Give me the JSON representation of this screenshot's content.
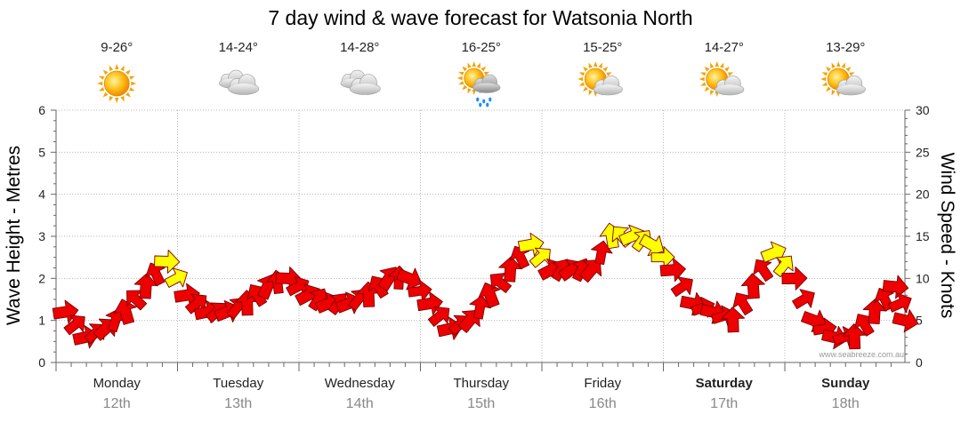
{
  "chart_data": {
    "type": "line",
    "title": "7 day wind & wave forecast for Watsonia North",
    "ylabel": "Wave Height - Metres",
    "y2label": "Wind Speed - Knots",
    "ylim": [
      0,
      6
    ],
    "y2lim": [
      0,
      30
    ],
    "y_ticks": [
      "0",
      "1",
      "2",
      "3",
      "4",
      "5",
      "6"
    ],
    "y2_ticks": [
      "0",
      "5",
      "10",
      "15",
      "20",
      "25",
      "30"
    ],
    "grid": true,
    "credit": "www.seabreeze.com.au",
    "days": [
      {
        "name": "Monday",
        "date": "12th",
        "temp": "9-26°",
        "icon": "sunny-icon",
        "bold": false
      },
      {
        "name": "Tuesday",
        "date": "13th",
        "temp": "14-24°",
        "icon": "cloudy-icon",
        "bold": false
      },
      {
        "name": "Wednesday",
        "date": "14th",
        "temp": "14-28°",
        "icon": "cloudy-icon",
        "bold": false
      },
      {
        "name": "Thursday",
        "date": "15th",
        "temp": "16-25°",
        "icon": "shower-icon",
        "bold": false
      },
      {
        "name": "Friday",
        "date": "16th",
        "temp": "15-25°",
        "icon": "partly-cloudy-icon",
        "bold": false
      },
      {
        "name": "Saturday",
        "date": "17th",
        "temp": "14-27°",
        "icon": "partly-cloudy-icon",
        "bold": true
      },
      {
        "name": "Sunday",
        "date": "18th",
        "temp": "13-29°",
        "icon": "partly-cloudy-icon",
        "bold": true
      }
    ],
    "series": [
      {
        "name": "Wind Speed (knots)",
        "x_hours": [
          0,
          4,
          8,
          12,
          16,
          20,
          24,
          28,
          32,
          36,
          40,
          44,
          48,
          52,
          56,
          60,
          64,
          68,
          72,
          76,
          80,
          84,
          88,
          92,
          96,
          100,
          104,
          108,
          112,
          116,
          120,
          124,
          128,
          132,
          136,
          140,
          144,
          148,
          152,
          156,
          160,
          164,
          166
        ],
        "values": [
          6,
          3,
          4,
          6,
          9,
          12,
          8,
          6,
          6,
          7,
          9,
          10,
          8,
          7,
          7,
          8,
          10,
          10,
          7,
          4,
          5,
          8,
          11,
          14,
          11,
          11,
          11,
          15,
          15,
          14,
          11,
          7,
          6,
          5,
          9,
          13,
          10,
          5,
          3,
          3,
          6,
          9,
          5
        ],
        "colors": [
          "red",
          "red",
          "red",
          "red",
          "red",
          "yellow",
          "red",
          "red",
          "red",
          "red",
          "red",
          "red",
          "red",
          "red",
          "red",
          "red",
          "red",
          "red",
          "red",
          "red",
          "red",
          "red",
          "red",
          "yellow",
          "red",
          "red",
          "red",
          "yellow",
          "yellow",
          "yellow",
          "red",
          "red",
          "red",
          "red",
          "red",
          "yellow",
          "red",
          "red",
          "red",
          "red",
          "red",
          "red",
          "red"
        ]
      }
    ],
    "color_legend": {
      "red": "#ee0000",
      "yellow": "#ffff00"
    }
  }
}
